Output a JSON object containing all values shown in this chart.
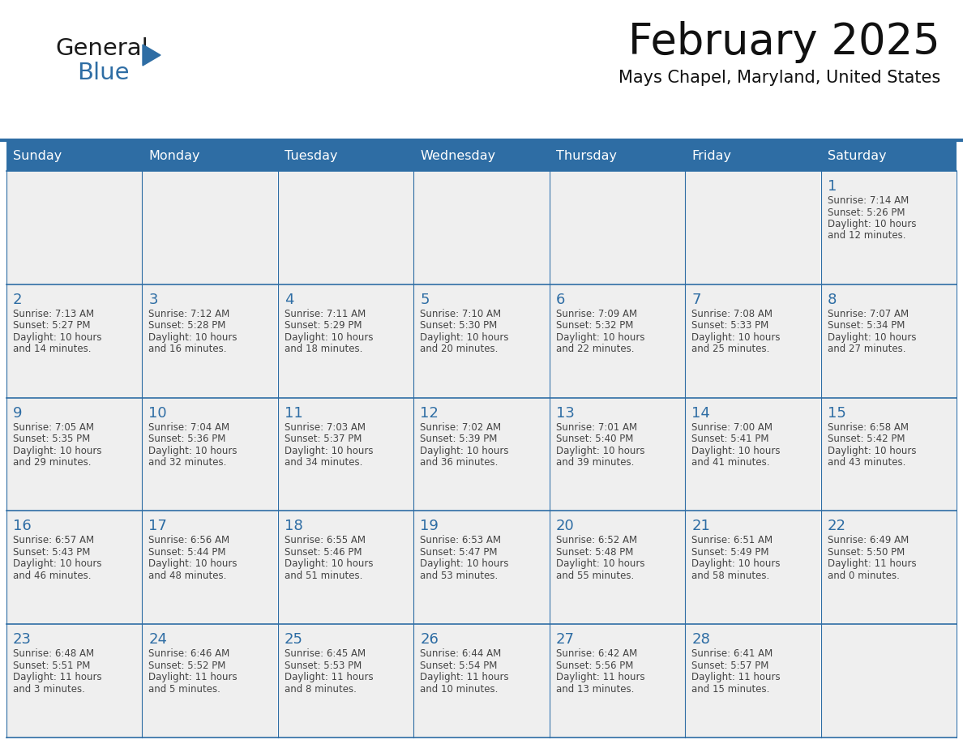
{
  "title": "February 2025",
  "subtitle": "Mays Chapel, Maryland, United States",
  "header_bg": "#2E6DA4",
  "header_text_color": "#FFFFFF",
  "cell_bg": "#EFEFEF",
  "day_number_color": "#2E6DA4",
  "text_color": "#444444",
  "line_color": "#2E6DA4",
  "days_of_week": [
    "Sunday",
    "Monday",
    "Tuesday",
    "Wednesday",
    "Thursday",
    "Friday",
    "Saturday"
  ],
  "weeks": [
    [
      {
        "day": "",
        "info": ""
      },
      {
        "day": "",
        "info": ""
      },
      {
        "day": "",
        "info": ""
      },
      {
        "day": "",
        "info": ""
      },
      {
        "day": "",
        "info": ""
      },
      {
        "day": "",
        "info": ""
      },
      {
        "day": "1",
        "info": "Sunrise: 7:14 AM\nSunset: 5:26 PM\nDaylight: 10 hours\nand 12 minutes."
      }
    ],
    [
      {
        "day": "2",
        "info": "Sunrise: 7:13 AM\nSunset: 5:27 PM\nDaylight: 10 hours\nand 14 minutes."
      },
      {
        "day": "3",
        "info": "Sunrise: 7:12 AM\nSunset: 5:28 PM\nDaylight: 10 hours\nand 16 minutes."
      },
      {
        "day": "4",
        "info": "Sunrise: 7:11 AM\nSunset: 5:29 PM\nDaylight: 10 hours\nand 18 minutes."
      },
      {
        "day": "5",
        "info": "Sunrise: 7:10 AM\nSunset: 5:30 PM\nDaylight: 10 hours\nand 20 minutes."
      },
      {
        "day": "6",
        "info": "Sunrise: 7:09 AM\nSunset: 5:32 PM\nDaylight: 10 hours\nand 22 minutes."
      },
      {
        "day": "7",
        "info": "Sunrise: 7:08 AM\nSunset: 5:33 PM\nDaylight: 10 hours\nand 25 minutes."
      },
      {
        "day": "8",
        "info": "Sunrise: 7:07 AM\nSunset: 5:34 PM\nDaylight: 10 hours\nand 27 minutes."
      }
    ],
    [
      {
        "day": "9",
        "info": "Sunrise: 7:05 AM\nSunset: 5:35 PM\nDaylight: 10 hours\nand 29 minutes."
      },
      {
        "day": "10",
        "info": "Sunrise: 7:04 AM\nSunset: 5:36 PM\nDaylight: 10 hours\nand 32 minutes."
      },
      {
        "day": "11",
        "info": "Sunrise: 7:03 AM\nSunset: 5:37 PM\nDaylight: 10 hours\nand 34 minutes."
      },
      {
        "day": "12",
        "info": "Sunrise: 7:02 AM\nSunset: 5:39 PM\nDaylight: 10 hours\nand 36 minutes."
      },
      {
        "day": "13",
        "info": "Sunrise: 7:01 AM\nSunset: 5:40 PM\nDaylight: 10 hours\nand 39 minutes."
      },
      {
        "day": "14",
        "info": "Sunrise: 7:00 AM\nSunset: 5:41 PM\nDaylight: 10 hours\nand 41 minutes."
      },
      {
        "day": "15",
        "info": "Sunrise: 6:58 AM\nSunset: 5:42 PM\nDaylight: 10 hours\nand 43 minutes."
      }
    ],
    [
      {
        "day": "16",
        "info": "Sunrise: 6:57 AM\nSunset: 5:43 PM\nDaylight: 10 hours\nand 46 minutes."
      },
      {
        "day": "17",
        "info": "Sunrise: 6:56 AM\nSunset: 5:44 PM\nDaylight: 10 hours\nand 48 minutes."
      },
      {
        "day": "18",
        "info": "Sunrise: 6:55 AM\nSunset: 5:46 PM\nDaylight: 10 hours\nand 51 minutes."
      },
      {
        "day": "19",
        "info": "Sunrise: 6:53 AM\nSunset: 5:47 PM\nDaylight: 10 hours\nand 53 minutes."
      },
      {
        "day": "20",
        "info": "Sunrise: 6:52 AM\nSunset: 5:48 PM\nDaylight: 10 hours\nand 55 minutes."
      },
      {
        "day": "21",
        "info": "Sunrise: 6:51 AM\nSunset: 5:49 PM\nDaylight: 10 hours\nand 58 minutes."
      },
      {
        "day": "22",
        "info": "Sunrise: 6:49 AM\nSunset: 5:50 PM\nDaylight: 11 hours\nand 0 minutes."
      }
    ],
    [
      {
        "day": "23",
        "info": "Sunrise: 6:48 AM\nSunset: 5:51 PM\nDaylight: 11 hours\nand 3 minutes."
      },
      {
        "day": "24",
        "info": "Sunrise: 6:46 AM\nSunset: 5:52 PM\nDaylight: 11 hours\nand 5 minutes."
      },
      {
        "day": "25",
        "info": "Sunrise: 6:45 AM\nSunset: 5:53 PM\nDaylight: 11 hours\nand 8 minutes."
      },
      {
        "day": "26",
        "info": "Sunrise: 6:44 AM\nSunset: 5:54 PM\nDaylight: 11 hours\nand 10 minutes."
      },
      {
        "day": "27",
        "info": "Sunrise: 6:42 AM\nSunset: 5:56 PM\nDaylight: 11 hours\nand 13 minutes."
      },
      {
        "day": "28",
        "info": "Sunrise: 6:41 AM\nSunset: 5:57 PM\nDaylight: 11 hours\nand 15 minutes."
      },
      {
        "day": "",
        "info": ""
      }
    ]
  ],
  "logo_text1": "General",
  "logo_text2": "Blue",
  "logo_color1": "#1a1a1a",
  "logo_color2": "#2E6DA4",
  "logo_triangle_color": "#2E6DA4",
  "fig_width": 11.88,
  "fig_height": 9.18,
  "dpi": 100
}
